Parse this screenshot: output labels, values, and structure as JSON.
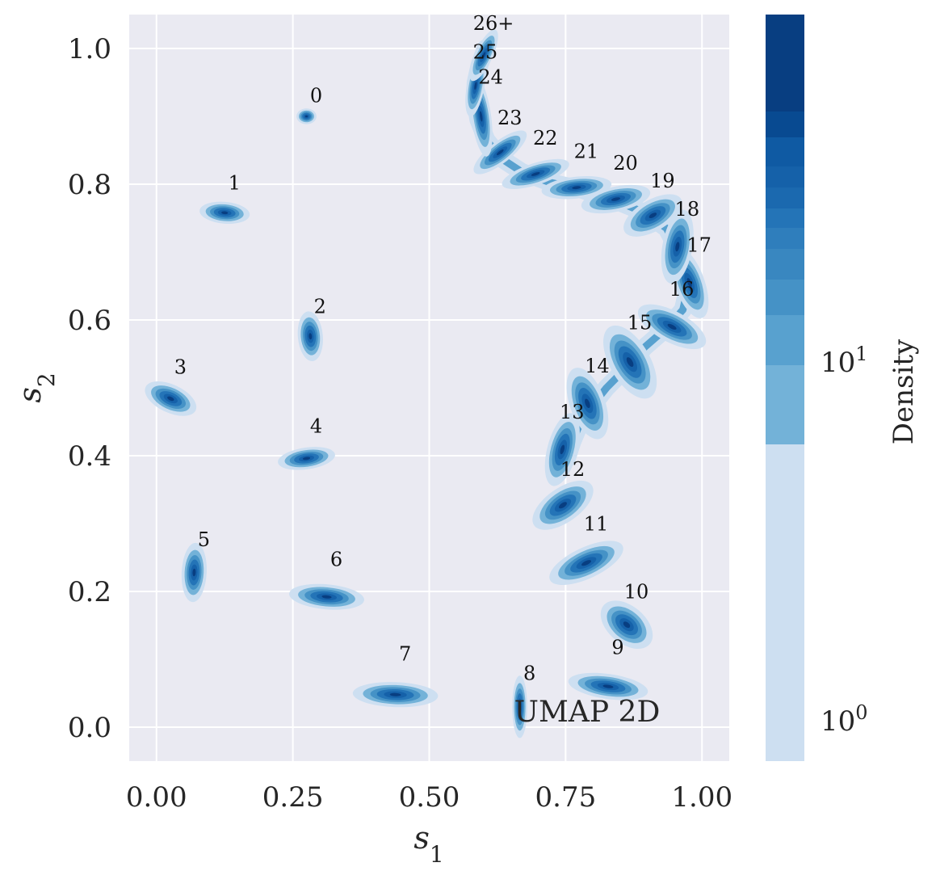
{
  "chart_data": {
    "type": "scatter",
    "annotation": "UMAP 2D",
    "xlabel_base": "s",
    "xlabel_sub": "1",
    "ylabel_base": "s",
    "ylabel_sub": "2",
    "xlim": [
      -0.05,
      1.05
    ],
    "ylim": [
      -0.05,
      1.05
    ],
    "xticks": [
      0.0,
      0.25,
      0.5,
      0.75,
      1.0
    ],
    "xtick_labels": [
      "0.00",
      "0.25",
      "0.50",
      "0.75",
      "1.00"
    ],
    "yticks": [
      0.0,
      0.2,
      0.4,
      0.6,
      0.8,
      1.0
    ],
    "ytick_labels": [
      "0.0",
      "0.2",
      "0.4",
      "0.6",
      "0.8",
      "1.0"
    ],
    "grid": true,
    "colorbar": {
      "title": "Density",
      "scale": "log",
      "tick_base": "10",
      "tick_exponents": [
        "0",
        "1"
      ],
      "colors": [
        "#cddff1",
        "#73b2d8",
        "#58a1cf",
        "#4592c6",
        "#3987c0",
        "#2f7ebc",
        "#2474b7",
        "#1b69af",
        "#1561a9",
        "#0f5aa3",
        "#084a91",
        "#083e81"
      ]
    },
    "clusters": [
      {
        "label": "0",
        "x": 0.275,
        "y": 0.9,
        "sx": 0.008,
        "sy": 0.005,
        "angle": 0
      },
      {
        "label": "1",
        "x": 0.125,
        "y": 0.758,
        "sx": 0.02,
        "sy": 0.007,
        "angle": -5
      },
      {
        "label": "2",
        "x": 0.282,
        "y": 0.576,
        "sx": 0.01,
        "sy": 0.016,
        "angle": 5
      },
      {
        "label": "3",
        "x": 0.026,
        "y": 0.484,
        "sx": 0.022,
        "sy": 0.009,
        "angle": -25
      },
      {
        "label": "4",
        "x": 0.275,
        "y": 0.396,
        "sx": 0.023,
        "sy": 0.007,
        "angle": 8
      },
      {
        "label": "5",
        "x": 0.069,
        "y": 0.228,
        "sx": 0.01,
        "sy": 0.019,
        "angle": -3
      },
      {
        "label": "6",
        "x": 0.312,
        "y": 0.192,
        "sx": 0.03,
        "sy": 0.008,
        "angle": -5
      },
      {
        "label": "7",
        "x": 0.438,
        "y": 0.048,
        "sx": 0.034,
        "sy": 0.008,
        "angle": -2
      },
      {
        "label": "8",
        "x": 0.666,
        "y": 0.03,
        "sx": 0.006,
        "sy": 0.02,
        "angle": 0
      },
      {
        "label": "9",
        "x": 0.828,
        "y": 0.06,
        "sx": 0.032,
        "sy": 0.008,
        "angle": -8
      },
      {
        "label": "10",
        "x": 0.862,
        "y": 0.151,
        "sx": 0.024,
        "sy": 0.012,
        "angle": -40
      },
      {
        "label": "11",
        "x": 0.788,
        "y": 0.242,
        "sx": 0.032,
        "sy": 0.01,
        "angle": 25
      },
      {
        "label": "12",
        "x": 0.745,
        "y": 0.327,
        "sx": 0.028,
        "sy": 0.011,
        "angle": 35
      },
      {
        "label": "13",
        "x": 0.744,
        "y": 0.409,
        "sx": 0.012,
        "sy": 0.024,
        "angle": -15
      },
      {
        "label": "14",
        "x": 0.79,
        "y": 0.477,
        "sx": 0.014,
        "sy": 0.024,
        "angle": 20
      },
      {
        "label": "15",
        "x": 0.868,
        "y": 0.538,
        "sx": 0.016,
        "sy": 0.026,
        "angle": 30
      },
      {
        "label": "16",
        "x": 0.945,
        "y": 0.59,
        "sx": 0.03,
        "sy": 0.01,
        "angle": -28
      },
      {
        "label": "17",
        "x": 0.977,
        "y": 0.655,
        "sx": 0.012,
        "sy": 0.024,
        "angle": 20
      },
      {
        "label": "18",
        "x": 0.955,
        "y": 0.708,
        "sx": 0.012,
        "sy": 0.024,
        "angle": -10
      },
      {
        "label": "19",
        "x": 0.91,
        "y": 0.754,
        "sx": 0.026,
        "sy": 0.01,
        "angle": 30
      },
      {
        "label": "20",
        "x": 0.842,
        "y": 0.778,
        "sx": 0.028,
        "sy": 0.008,
        "angle": 12
      },
      {
        "label": "21",
        "x": 0.77,
        "y": 0.795,
        "sx": 0.028,
        "sy": 0.007,
        "angle": 6
      },
      {
        "label": "22",
        "x": 0.695,
        "y": 0.815,
        "sx": 0.028,
        "sy": 0.007,
        "angle": 18
      },
      {
        "label": "23",
        "x": 0.63,
        "y": 0.847,
        "sx": 0.026,
        "sy": 0.007,
        "angle": 38
      },
      {
        "label": "24",
        "x": 0.595,
        "y": 0.9,
        "sx": 0.008,
        "sy": 0.026,
        "angle": 8
      },
      {
        "label": "25",
        "x": 0.585,
        "y": 0.945,
        "sx": 0.007,
        "sy": 0.02,
        "angle": -10
      },
      {
        "label": "26+",
        "x": 0.6,
        "y": 0.99,
        "sx": 0.007,
        "sy": 0.018,
        "angle": -25
      }
    ],
    "curve": [
      {
        "x": 0.603,
        "y": 1.0
      },
      {
        "x": 0.592,
        "y": 0.975
      },
      {
        "x": 0.585,
        "y": 0.95
      },
      {
        "x": 0.584,
        "y": 0.925
      },
      {
        "x": 0.59,
        "y": 0.895
      },
      {
        "x": 0.605,
        "y": 0.865
      },
      {
        "x": 0.632,
        "y": 0.838
      },
      {
        "x": 0.67,
        "y": 0.818
      },
      {
        "x": 0.72,
        "y": 0.803
      },
      {
        "x": 0.775,
        "y": 0.793
      },
      {
        "x": 0.835,
        "y": 0.778
      },
      {
        "x": 0.895,
        "y": 0.758
      },
      {
        "x": 0.935,
        "y": 0.735
      },
      {
        "x": 0.955,
        "y": 0.705
      },
      {
        "x": 0.965,
        "y": 0.675
      },
      {
        "x": 0.975,
        "y": 0.65
      },
      {
        "x": 0.965,
        "y": 0.615
      },
      {
        "x": 0.935,
        "y": 0.588
      },
      {
        "x": 0.895,
        "y": 0.56
      },
      {
        "x": 0.862,
        "y": 0.53
      },
      {
        "x": 0.825,
        "y": 0.5
      },
      {
        "x": 0.795,
        "y": 0.47
      },
      {
        "x": 0.775,
        "y": 0.445
      },
      {
        "x": 0.762,
        "y": 0.42
      },
      {
        "x": 0.752,
        "y": 0.395
      }
    ]
  }
}
